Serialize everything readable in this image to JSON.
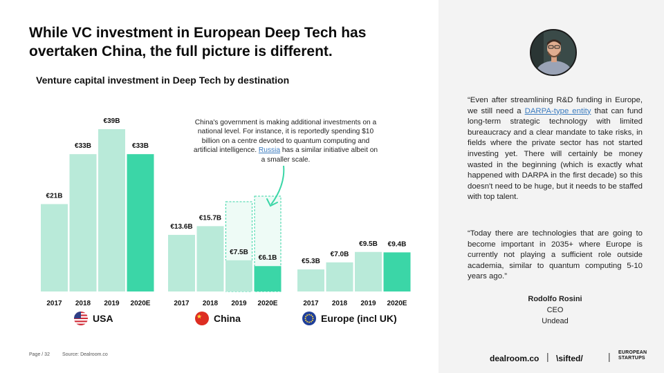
{
  "page": {
    "title": "While VC investment in European Deep Tech has overtaken China, the full picture is different.",
    "footer_page": "Page / 32",
    "footer_source": "Source: Dealroom.co"
  },
  "annotation": {
    "text_before_link": "China's government is making additional investments on a national level. For instance, it is reportedly spending $10 billion on a centre devoted to quantum computing and artificial intelligence. ",
    "link_text": "Russia",
    "text_after_link": " has a similar initiative albeit on a smaller scale."
  },
  "chart_data": {
    "type": "bar",
    "title": "Venture capital investment in Deep Tech by destination",
    "groups": [
      {
        "name": "USA",
        "flag": "us-flag-icon",
        "categories": [
          "2017",
          "2018",
          "2019",
          "2020E"
        ],
        "values": [
          21,
          33,
          39,
          33
        ],
        "labels": [
          "€21B",
          "€33B",
          "€39B",
          "€33B"
        ]
      },
      {
        "name": "China",
        "flag": "china-flag-icon",
        "categories": [
          "2017",
          "2018",
          "2019",
          "2020E"
        ],
        "values": [
          13.6,
          15.7,
          7.5,
          6.1
        ],
        "labels": [
          "€13.6B",
          "€15.7B",
          "€7.5B",
          "€6.1B"
        ]
      },
      {
        "name": "Europe (incl UK)",
        "flag": "eu-flag-icon",
        "categories": [
          "2017",
          "2018",
          "2019",
          "2020E"
        ],
        "values": [
          5.3,
          7.0,
          9.5,
          9.4
        ],
        "labels": [
          "€5.3B",
          "€7.0B",
          "€9.5B",
          "€9.4B"
        ]
      }
    ],
    "ylim": [
      0,
      39
    ],
    "colors": {
      "actual": "#b9ead9",
      "estimate": "#3bd6a7",
      "dashed_outline": "#3bd6a7",
      "dashed_fill": "#eefbf6"
    }
  },
  "sidebar": {
    "quote1_part1": "“Even after streamlining R&D funding in Europe, we still need a ",
    "quote1_link": "DARPA-type entity",
    "quote1_part2": " that can fund long-term strategic technology with limited bureaucracy and a clear mandate to take risks, in fields where the private sector has not started investing yet. There will certainly be money wasted in the beginning (which is exactly what happened with DARPA in the first decade) so this doesn't need to be huge, but it needs to be staffed with top talent.",
    "quote2": "“Today there are technologies that are going to become important in 2035+ where Europe is currently not playing a sufficient role outside academia, similar to quantum computing 5-10 years ago.”",
    "person_name": "Rodolfo Rosini",
    "person_role": "CEO",
    "person_company": "Undead"
  },
  "brands": {
    "dealroom": "dealroom.co",
    "separator": "|",
    "sifted": "\\sifted/",
    "european_line1": "EUROPEAN",
    "european_line2": "STARTUPS"
  }
}
